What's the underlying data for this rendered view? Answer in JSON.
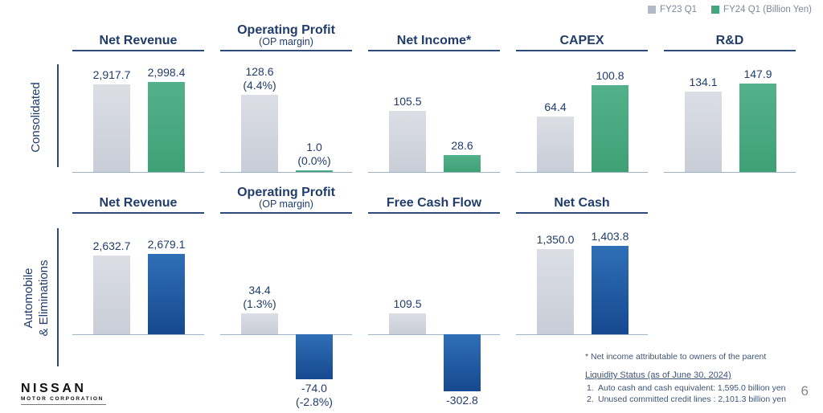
{
  "legend": {
    "fy23_label": "FY23 Q1",
    "fy24_label": "FY24 Q1 (Billion Yen)"
  },
  "colors": {
    "fy23_bar": [
      "#dbdee5",
      "#c9cdd7"
    ],
    "fy24_green": [
      "#53b18b",
      "#3fa075"
    ],
    "fy24_blue": [
      "#2f6fb6",
      "#16498f"
    ],
    "axis": "#9cb4ca",
    "heading": "#223d6b"
  },
  "sections": [
    {
      "label": "Consolidated"
    },
    {
      "label": "Automobile\n& Eliminations"
    }
  ],
  "chart_data": [
    {
      "type": "bar",
      "section": "consolidated",
      "title": "Net Revenue",
      "categories": [
        "FY23 Q1",
        "FY24 Q1"
      ],
      "values": [
        2917.7,
        2998.4
      ],
      "labels": [
        "2,917.7",
        "2,998.4"
      ],
      "sub_labels": null,
      "ylim": [
        0,
        3000
      ]
    },
    {
      "type": "bar",
      "section": "consolidated",
      "title": "Operating Profit",
      "subtitle": "(OP margin)",
      "categories": [
        "FY23 Q1",
        "FY24 Q1"
      ],
      "values": [
        128.6,
        1.0
      ],
      "labels": [
        "128.6",
        "1.0"
      ],
      "sub_labels": [
        "(4.4%)",
        "(0.0%)"
      ],
      "ylim": [
        0,
        150
      ]
    },
    {
      "type": "bar",
      "section": "consolidated",
      "title": "Net Income*",
      "categories": [
        "FY23 Q1",
        "FY24 Q1"
      ],
      "values": [
        105.5,
        28.6
      ],
      "labels": [
        "105.5",
        "28.6"
      ],
      "sub_labels": null,
      "ylim": [
        0,
        155
      ]
    },
    {
      "type": "bar",
      "section": "consolidated",
      "title": "CAPEX",
      "categories": [
        "FY23 Q1",
        "FY24 Q1"
      ],
      "values": [
        64.4,
        100.8
      ],
      "labels": [
        "64.4",
        "100.8"
      ],
      "sub_labels": null,
      "ylim": [
        0,
        105
      ]
    },
    {
      "type": "bar",
      "section": "consolidated",
      "title": "R&D",
      "categories": [
        "FY23 Q1",
        "FY24 Q1"
      ],
      "values": [
        134.1,
        147.9
      ],
      "labels": [
        "134.1",
        "147.9"
      ],
      "sub_labels": null,
      "ylim": [
        0,
        150
      ]
    },
    {
      "type": "bar",
      "section": "automobile",
      "title": "Net Revenue",
      "categories": [
        "FY23 Q1",
        "FY24 Q1"
      ],
      "values": [
        2632.7,
        2679.1
      ],
      "labels": [
        "2,632.7",
        "2,679.1"
      ],
      "sub_labels": null,
      "ylim": [
        0,
        3000
      ]
    },
    {
      "type": "bar",
      "section": "automobile",
      "title": "Operating Profit",
      "subtitle": "(OP margin)",
      "categories": [
        "FY23 Q1",
        "FY24 Q1"
      ],
      "values": [
        34.4,
        -74.0
      ],
      "labels": [
        "34.4",
        "-74.0"
      ],
      "sub_labels": [
        "(1.3%)",
        "(-2.8%)"
      ],
      "ylim": [
        -100,
        40
      ]
    },
    {
      "type": "bar",
      "section": "automobile",
      "title": "Free Cash Flow",
      "categories": [
        "FY23 Q1",
        "FY24 Q1"
      ],
      "values": [
        109.5,
        -302.8
      ],
      "labels": [
        "109.5",
        "-302.8"
      ],
      "sub_labels": null,
      "ylim": [
        -320,
        120
      ]
    },
    {
      "type": "bar",
      "section": "automobile",
      "title": "Net Cash",
      "categories": [
        "FY23 Q1",
        "FY24 Q1"
      ],
      "values": [
        1350.0,
        1403.8
      ],
      "labels": [
        "1,350.0",
        "1,403.8"
      ],
      "sub_labels": null,
      "ylim": [
        0,
        1430
      ]
    }
  ],
  "footnotes": {
    "net_income_note": "* Net income attributable to owners of the parent",
    "liquidity_title": "Liquidity Status (as of June 30, 2024)",
    "items": [
      {
        "num": "1.",
        "text": "Auto cash and cash equivalent: 1,595.0 billion yen"
      },
      {
        "num": "2.",
        "text": "Unused committed credit lines : 2,101.3 billion yen"
      }
    ]
  },
  "logo": {
    "name": "NISSAN",
    "sub": "MOTOR CORPORATION"
  },
  "page_number": "6"
}
